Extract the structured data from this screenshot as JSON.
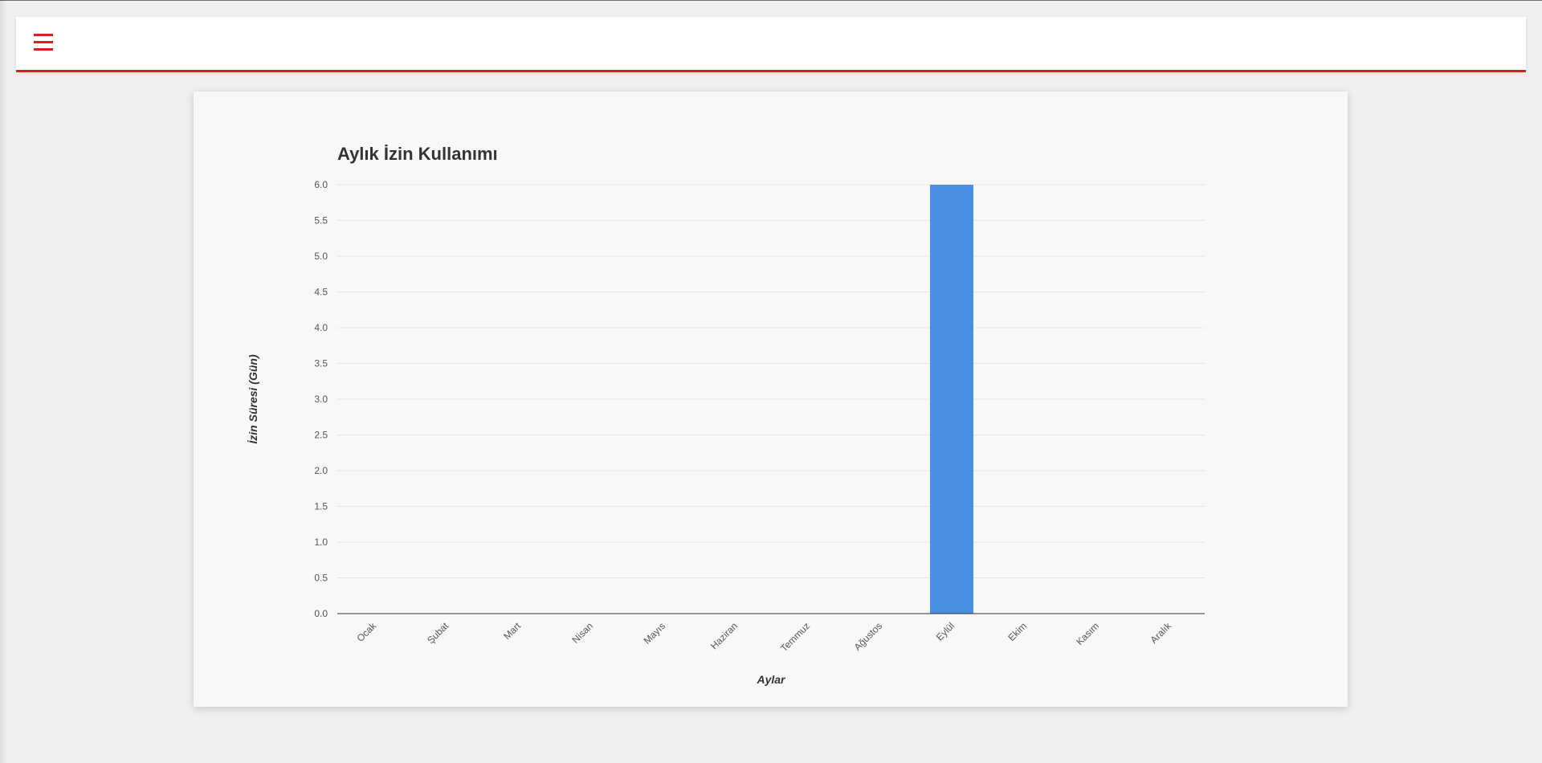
{
  "header": {
    "menu_icon": "hamburger-menu-icon",
    "accent_color": "#d81e1e"
  },
  "chart_data": {
    "type": "bar",
    "title": "Aylık İzin Kullanımı",
    "xlabel": "Aylar",
    "ylabel": "İzin Süresi (Gün)",
    "categories": [
      "Ocak",
      "Şubat",
      "Mart",
      "Nisan",
      "Mayıs",
      "Haziran",
      "Temmuz",
      "Ağustos",
      "Eylül",
      "Ekim",
      "Kasım",
      "Aralık"
    ],
    "values": [
      0,
      0,
      0,
      0,
      0,
      0,
      0,
      0,
      6,
      0,
      0,
      0
    ],
    "ylim": [
      0,
      6
    ],
    "yticks": [
      "0.0",
      "0.5",
      "1.0",
      "1.5",
      "2.0",
      "2.5",
      "3.0",
      "3.5",
      "4.0",
      "4.5",
      "5.0",
      "5.5",
      "6.0"
    ],
    "bar_color": "#4a90e2",
    "grid": true,
    "legend": "none"
  }
}
